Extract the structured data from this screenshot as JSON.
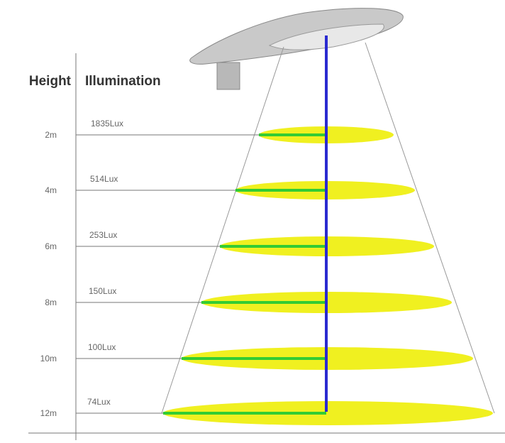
{
  "header": {
    "height": "Height",
    "illumination": "Illumination"
  },
  "rows": [
    {
      "height": "2m",
      "illumination": "1835Lux"
    },
    {
      "height": "4m",
      "illumination": "514Lux"
    },
    {
      "height": "6m",
      "illumination": "253Lux"
    },
    {
      "height": "8m",
      "illumination": "150Lux"
    },
    {
      "height": "10m",
      "illumination": "100Lux"
    },
    {
      "height": "12m",
      "illumination": "74Lux"
    }
  ]
}
